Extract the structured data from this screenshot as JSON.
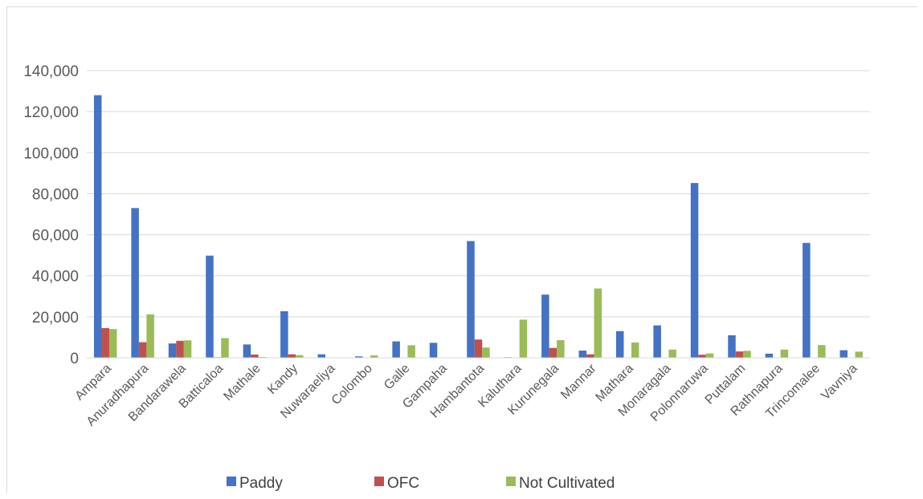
{
  "chart_data": {
    "type": "bar",
    "title": "",
    "xlabel": "",
    "ylabel": "",
    "ylim": [
      0,
      140000
    ],
    "yticks": [
      0,
      20000,
      40000,
      60000,
      80000,
      100000,
      120000,
      140000
    ],
    "ytick_labels": [
      "0",
      "20,000",
      "40,000",
      "60,000",
      "80,000",
      "100,000",
      "120,000",
      "140,000"
    ],
    "grid": true,
    "legend_position": "bottom",
    "categories": [
      "Ampara",
      "Anuradhapura",
      "Bandarawela",
      "Batticaloa",
      "Mathale",
      "Kandy",
      "Nuwaraeliya",
      "Colombo",
      "Galle",
      "Gampaha",
      "Hambantota",
      "Kaluthara",
      "Kurunegala",
      "Mannar",
      "Mathara",
      "Monaragala",
      "Polonnaruwa",
      "Puttalam",
      "Rathnapura",
      "Trincomalee",
      "Vavniya"
    ],
    "series": [
      {
        "name": "Paddy",
        "color": "#4472c4",
        "values": [
          128000,
          73000,
          7000,
          49800,
          6500,
          22700,
          1700,
          700,
          8000,
          7300,
          56900,
          300,
          30800,
          3500,
          13000,
          15800,
          85200,
          11000,
          2000,
          56000,
          3700
        ]
      },
      {
        "name": "OFC",
        "color": "#c0504d",
        "values": [
          14500,
          7600,
          8300,
          300,
          1600,
          1700,
          100,
          200,
          200,
          200,
          8900,
          200,
          4800,
          1700,
          200,
          200,
          1500,
          3100,
          100,
          200,
          200
        ]
      },
      {
        "name": "Not Cultivated",
        "color": "#9bbb59",
        "values": [
          14000,
          21200,
          8500,
          9600,
          400,
          1300,
          200,
          1200,
          6100,
          100,
          5000,
          18600,
          8600,
          33800,
          7500,
          4000,
          2100,
          3400,
          4000,
          6200,
          3000
        ]
      }
    ]
  }
}
